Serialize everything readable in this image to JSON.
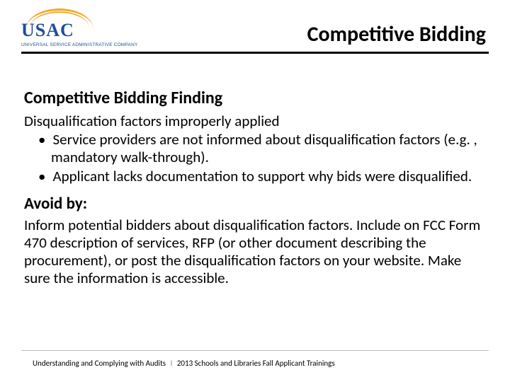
{
  "logo": {
    "text": "USAC",
    "subtext": "UNIVERSAL SERVICE ADMINISTRATIVE COMPANY",
    "arc_color": "#f5a623",
    "text_color": "#1f4e9c"
  },
  "title": "Competitive Bidding",
  "section_heading": "Competitive Bidding Finding",
  "lead_line": "Disqualification factors improperly applied",
  "bullets": [
    "Service providers are not informed about disqualification factors (e.g. , mandatory walk-through).",
    "Applicant lacks documentation to support why bids were disqualified."
  ],
  "avoid_heading": "Avoid by:",
  "avoid_body": "Inform potential bidders about disqualification factors. Include on FCC Form 470 description of services, RFP (or other document describing the procurement), or post the disqualification factors on your website. Make sure the information is accessible.",
  "footer": {
    "left": "Understanding and Complying with Audits",
    "right": "2013 Schools and Libraries Fall Applicant Trainings",
    "separator": "I"
  },
  "colors": {
    "rule": "#000000",
    "footer_rule": "#bfbfbf",
    "background": "#ffffff"
  }
}
